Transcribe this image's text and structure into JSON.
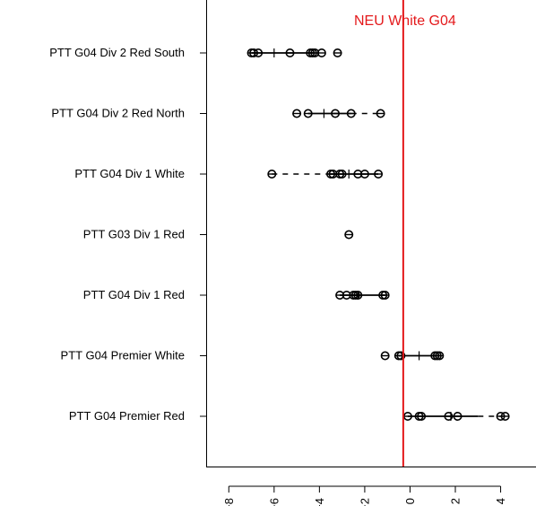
{
  "chart_data": {
    "type": "scatter",
    "annotation": "NEU White G04",
    "reference_line": {
      "x": -0.3,
      "color": "#e41a1c"
    },
    "xlim": [
      -9.0,
      5.6
    ],
    "xticks": [
      -8,
      -6,
      -4,
      -2,
      0,
      2,
      4
    ],
    "xtick_labels": [
      "-8",
      "-6",
      "-4",
      "-2",
      "0",
      "2",
      "4"
    ],
    "grid": false,
    "point_color": "#000000",
    "categories": [
      {
        "label": "PTT G04 Div 2 Red South",
        "points": [
          -7.0,
          -6.9,
          -6.7,
          -5.3,
          -4.4,
          -4.3,
          -4.2,
          -3.9,
          -3.2
        ],
        "ci": {
          "center": -6.0,
          "lo": -7.0,
          "hi": -4.3
        },
        "dashed": null
      },
      {
        "label": "PTT G04 Div 2 Red North",
        "points": [
          -5.0,
          -4.5,
          -3.3,
          -2.6,
          -1.3
        ],
        "ci": {
          "center": -3.8,
          "lo": -4.5,
          "hi": -2.6
        },
        "dashed": {
          "from": -2.6,
          "to": -1.3
        }
      },
      {
        "label": "PTT G04 Div 1 White",
        "points": [
          -6.1,
          -3.5,
          -3.4,
          -3.1,
          -3.0,
          -2.3,
          -2.0,
          -1.4
        ],
        "ci": {
          "center": -2.7,
          "lo": -3.5,
          "hi": -1.4
        },
        "dashed": {
          "from": -6.1,
          "to": -3.5
        }
      },
      {
        "label": "PTT G03 Div 1 Red",
        "points": [
          -2.7
        ],
        "ci": null,
        "dashed": null
      },
      {
        "label": "PTT G04 Div 1 Red",
        "points": [
          -3.1,
          -2.8,
          -2.5,
          -2.4,
          -2.3,
          -1.2,
          -1.1
        ],
        "ci": {
          "center": -2.3,
          "lo": -3.1,
          "hi": -1.1
        },
        "dashed": null
      },
      {
        "label": "PTT G04 Premier White",
        "points": [
          -1.1,
          -0.5,
          -0.4,
          1.1,
          1.2,
          1.3
        ],
        "ci": {
          "center": 0.4,
          "lo": -0.5,
          "hi": 1.3
        },
        "dashed": null
      },
      {
        "label": "PTT G04 Premier Red",
        "points": [
          -0.1,
          0.4,
          0.5,
          1.7,
          2.1,
          4.0,
          4.2
        ],
        "ci": {
          "center": 1.8,
          "lo": -0.1,
          "hi": 3.0
        },
        "dashed": {
          "from": 3.0,
          "to": 4.0
        }
      }
    ]
  }
}
